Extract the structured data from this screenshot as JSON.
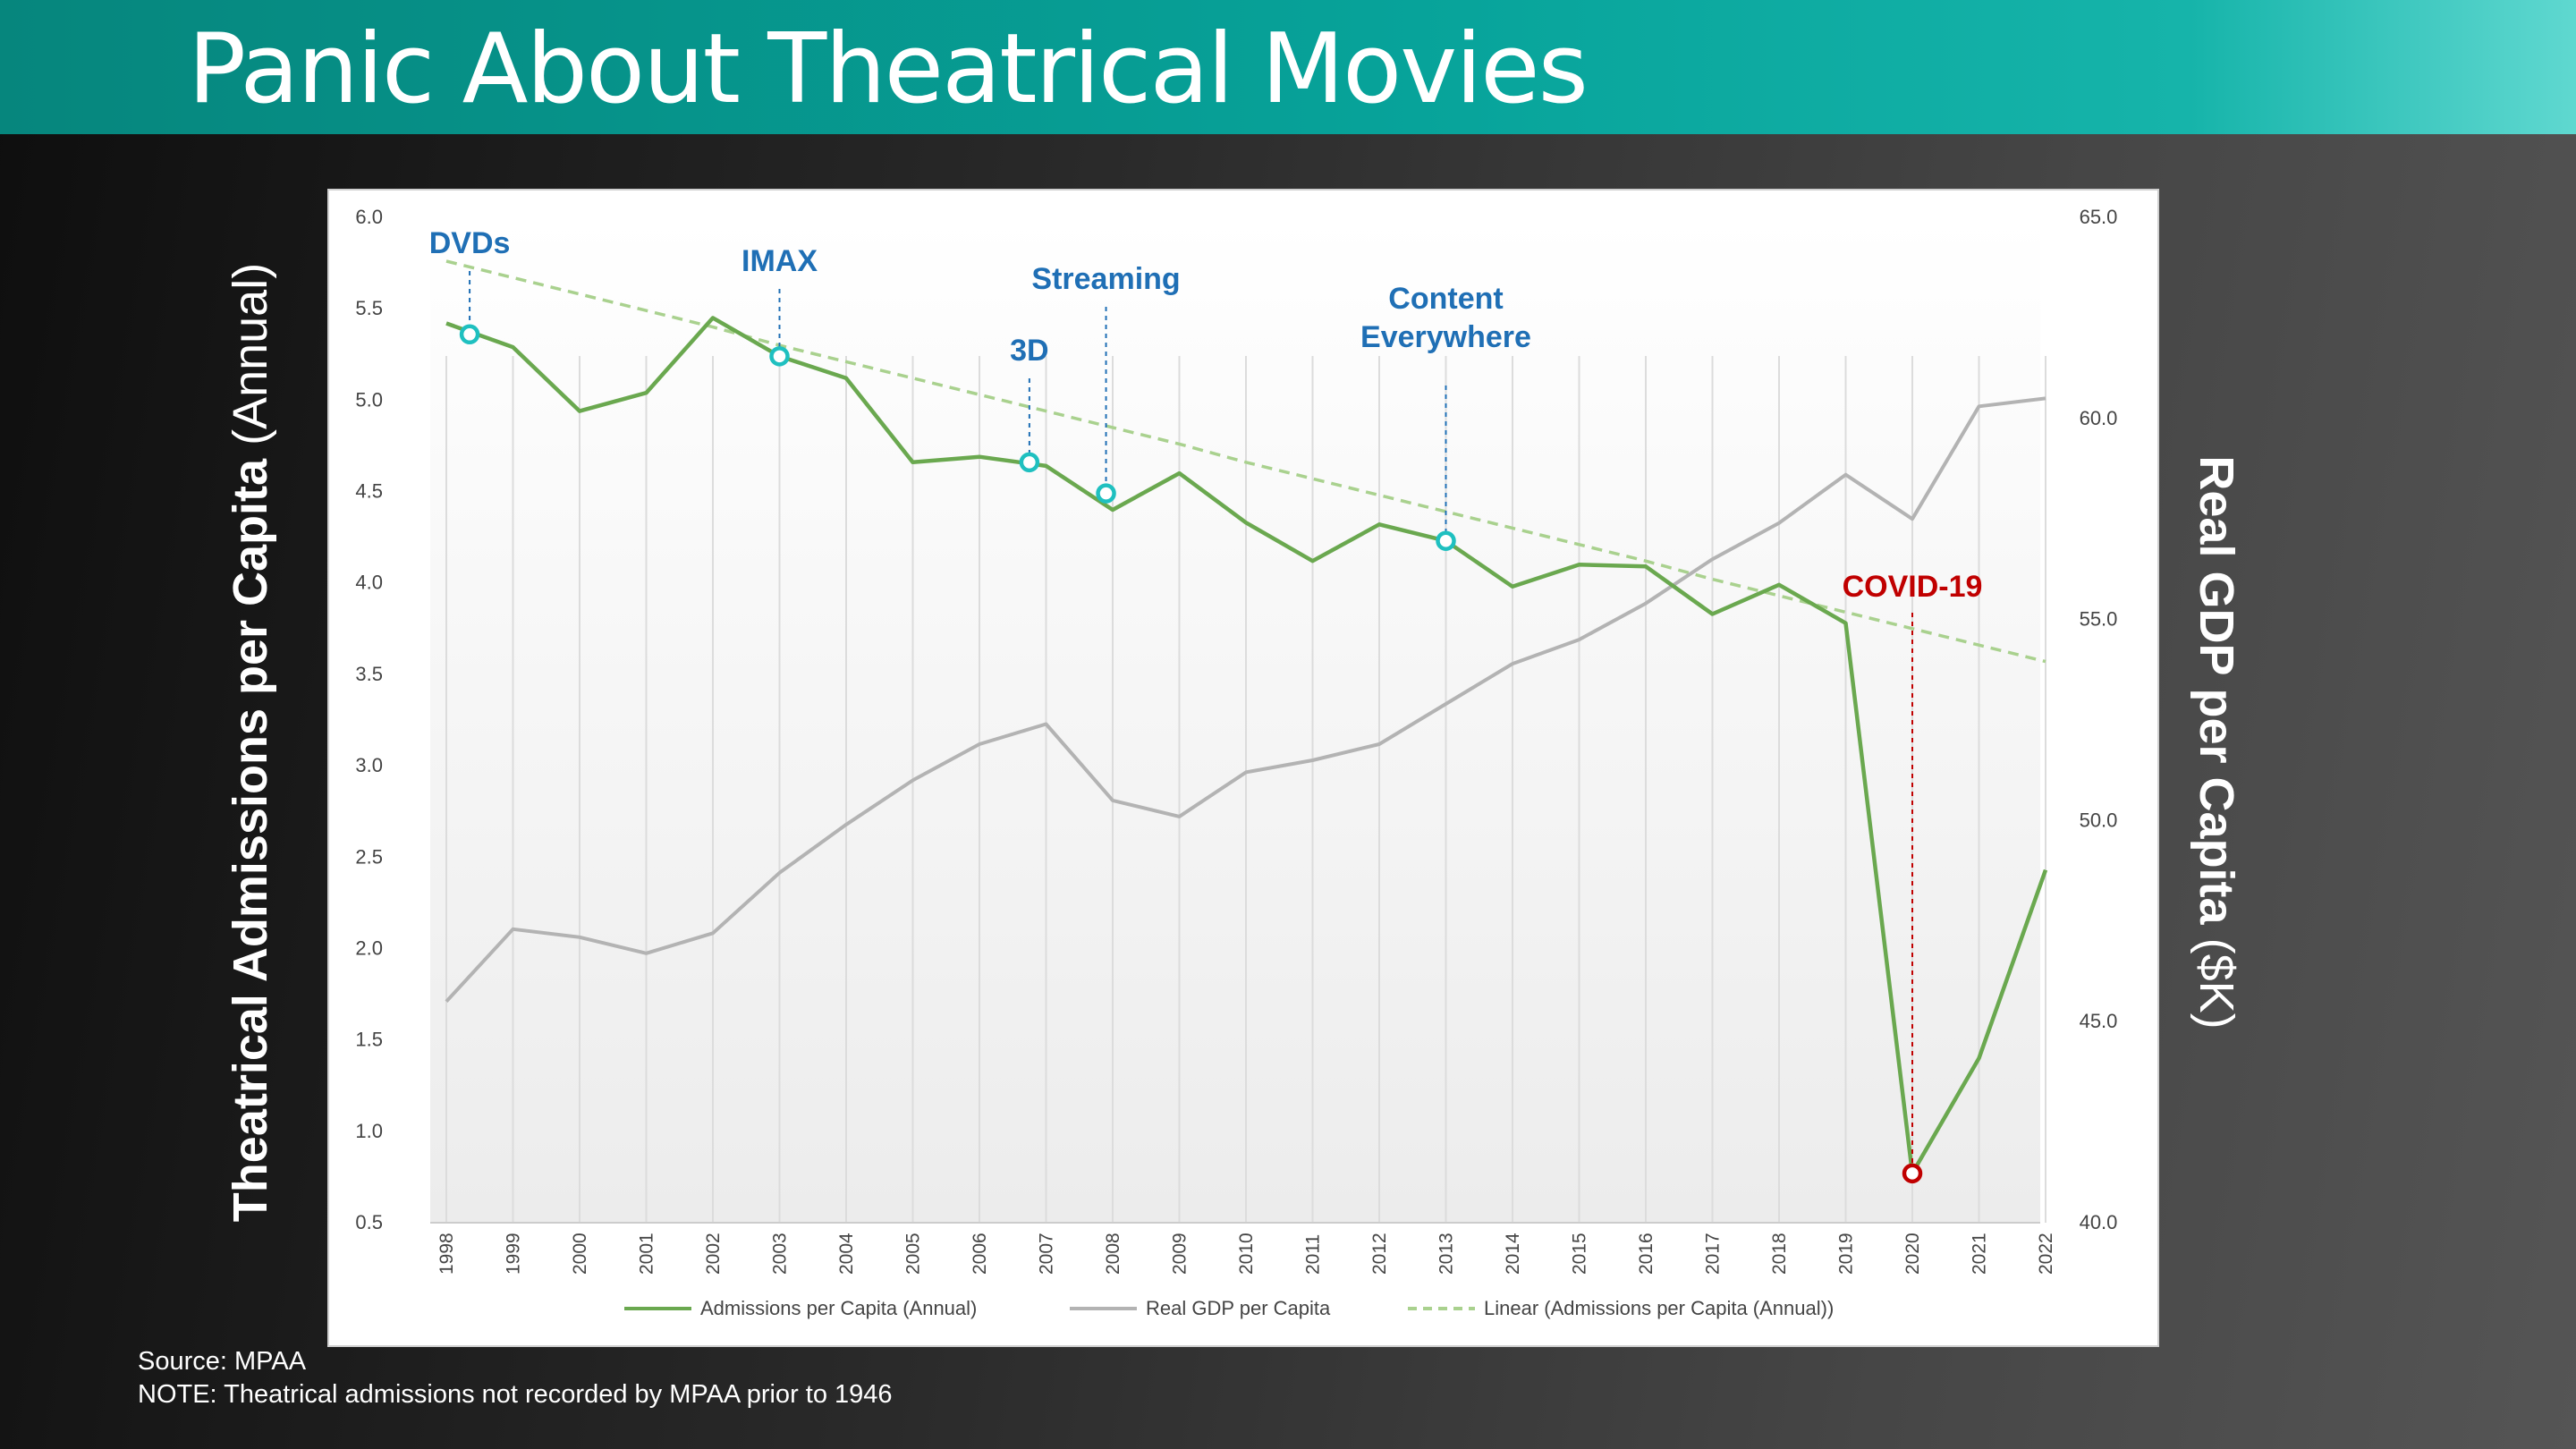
{
  "slide": {
    "title": "Panic About Theatrical Movies",
    "source": "Source: MPAA",
    "note": "NOTE: Theatrical admissions not recorded by MPAA prior to 1946"
  },
  "axis_titles": {
    "left_bold": "Theatrical Admissions per Capita",
    "left_normal": "(Annual)",
    "right_bold": "Real GDP per Capita",
    "right_normal": "($K)"
  },
  "colors": {
    "admissions": "#6aa84f",
    "gdp": "#b3b3b3",
    "trend": "#a9d18e",
    "event": "#1f6fb5",
    "marker": "#1fc0c0",
    "covid": "#c00000"
  },
  "chart_data": {
    "type": "line",
    "categories": [
      "1998",
      "1999",
      "2000",
      "2001",
      "2002",
      "2003",
      "2004",
      "2005",
      "2006",
      "2007",
      "2008",
      "2009",
      "2010",
      "2011",
      "2012",
      "2013",
      "2014",
      "2015",
      "2016",
      "2017",
      "2018",
      "2019",
      "2020",
      "2021",
      "2022"
    ],
    "series": [
      {
        "name": "Admissions per Capita (Annual)",
        "axis": "left",
        "values": [
          5.42,
          5.29,
          4.94,
          5.04,
          5.45,
          5.24,
          5.12,
          4.66,
          4.69,
          4.64,
          4.4,
          4.6,
          4.33,
          4.12,
          4.32,
          4.23,
          3.98,
          4.1,
          4.09,
          3.83,
          3.99,
          3.78,
          0.77,
          1.4,
          2.43
        ]
      },
      {
        "name": "Real GDP per Capita",
        "axis": "right",
        "values": [
          45.5,
          47.3,
          47.1,
          46.7,
          47.2,
          48.7,
          49.9,
          51.0,
          51.9,
          52.4,
          50.5,
          50.1,
          51.2,
          51.5,
          51.9,
          52.9,
          53.9,
          54.5,
          55.4,
          56.5,
          57.4,
          58.6,
          57.5,
          60.3,
          60.5
        ]
      },
      {
        "name": "Linear (Admissions per Capita (Annual))",
        "axis": "left",
        "style": "dashed",
        "values": [
          5.76,
          5.67,
          5.58,
          5.49,
          5.4,
          5.3,
          5.21,
          5.12,
          5.03,
          4.94,
          4.85,
          4.76,
          4.66,
          4.57,
          4.48,
          4.39,
          4.3,
          4.21,
          4.12,
          4.02,
          3.93,
          3.84,
          3.75,
          3.66,
          3.57
        ]
      }
    ],
    "y_left": {
      "range": [
        0.5,
        6.0
      ],
      "ticks": [
        "0.5",
        "1.0",
        "1.5",
        "2.0",
        "2.5",
        "3.0",
        "3.5",
        "4.0",
        "4.5",
        "5.0",
        "5.5",
        "6.0"
      ]
    },
    "y_right": {
      "range": [
        40.0,
        65.0
      ],
      "ticks": [
        "40.0",
        "45.0",
        "50.0",
        "55.0",
        "60.0",
        "65.0"
      ]
    },
    "events": [
      {
        "label": "DVDs",
        "year": 1998.35,
        "value": 5.36,
        "color": "#1f6fb5"
      },
      {
        "label": "IMAX",
        "year": 2003.0,
        "value": 5.24,
        "color": "#1f6fb5"
      },
      {
        "label": "3D",
        "year": 2006.75,
        "value": 4.66,
        "color": "#1f6fb5"
      },
      {
        "label": "Streaming",
        "year": 2007.9,
        "value": 4.49,
        "color": "#1f6fb5"
      },
      {
        "label": "Content Everywhere",
        "year": 2013.0,
        "value": 4.23,
        "color": "#1f6fb5"
      },
      {
        "label": "COVID-19",
        "year": 2020.0,
        "value": 0.77,
        "color": "#c00000"
      }
    ],
    "legend": [
      "Admissions per Capita (Annual)",
      "Real GDP per Capita",
      "Linear (Admissions per Capita (Annual))"
    ],
    "legend_position": "bottom",
    "grid": "vertical lines"
  }
}
